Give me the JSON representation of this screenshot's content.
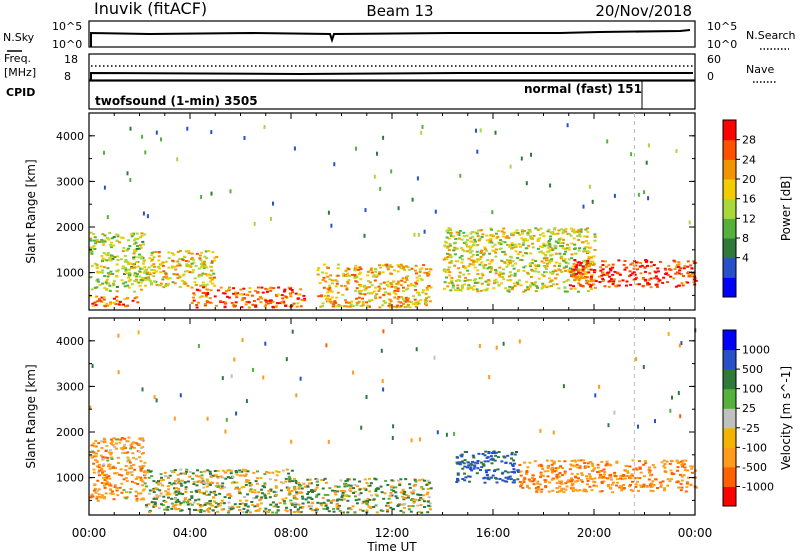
{
  "header": {
    "title": "Inuvik (fitACF)",
    "beam": "Beam 13",
    "date": "20/Nov/2018"
  },
  "sky_panel": {
    "left_label": "N.Sky",
    "right_label": "N.Search",
    "ticks": [
      "10^5",
      "10^0"
    ]
  },
  "freq_panel": {
    "left_label_1": "Freq.",
    "left_label_2": "[MHz]",
    "left_ticks": [
      "18",
      "8"
    ],
    "right_label": "Nave",
    "right_ticks": [
      "60",
      "0"
    ]
  },
  "cpid_panel": {
    "label": "CPID",
    "modes": [
      {
        "name": "twofsound (1-min) 3505",
        "start_hour": 0
      },
      {
        "name": "normal (fast) 151",
        "start_hour": 21.6
      }
    ]
  },
  "time_axis": {
    "label": "Time UT",
    "ticks": [
      "00:00",
      "04:00",
      "08:00",
      "12:00",
      "16:00",
      "20:00",
      "00:00"
    ]
  },
  "chart_data": [
    {
      "type": "heatmap",
      "name": "power",
      "xlabel": "Time UT",
      "ylabel": "Slant Range [km]",
      "xlim_hours": [
        0,
        24
      ],
      "ylim_km": [
        180,
        4500
      ],
      "yticks": [
        "1000",
        "2000",
        "3000",
        "4000"
      ],
      "colorbar": {
        "label": "Power [dB]",
        "ticks": [
          "28",
          "24",
          "20",
          "16",
          "12",
          "8",
          "4"
        ],
        "colors": [
          "#0000ff",
          "#2850c8",
          "#2f7a3a",
          "#54b23c",
          "#a8d83a",
          "#f2cc00",
          "#f29400",
          "#ff5000",
          "#ff0000"
        ]
      },
      "regions": [
        {
          "t0": 0,
          "t1": 2.2,
          "r0": 600,
          "r1": 1900,
          "value": 14
        },
        {
          "t0": 0,
          "t1": 2.0,
          "r0": 260,
          "r1": 500,
          "value": 26
        },
        {
          "t0": 2.2,
          "t1": 5,
          "r0": 700,
          "r1": 1500,
          "value": 18
        },
        {
          "t0": 4,
          "t1": 8.5,
          "r0": 250,
          "r1": 700,
          "value": 26
        },
        {
          "t0": 9,
          "t1": 13.5,
          "r0": 250,
          "r1": 1200,
          "value": 20
        },
        {
          "t0": 14,
          "t1": 20,
          "r0": 600,
          "r1": 2000,
          "value": 16
        },
        {
          "t0": 19,
          "t1": 24,
          "r0": 700,
          "r1": 1300,
          "value": 28
        }
      ]
    },
    {
      "type": "heatmap",
      "name": "velocity",
      "xlabel": "Time UT",
      "ylabel": "Slant Range [km]",
      "xlim_hours": [
        0,
        24
      ],
      "ylim_km": [
        180,
        4500
      ],
      "yticks": [
        "1000",
        "2000",
        "3000",
        "4000"
      ],
      "colorbar": {
        "label": "Velocity [m s^-1]",
        "ticks": [
          "1000",
          "500",
          "100",
          "25",
          "-25",
          "-100",
          "-500",
          "-1000"
        ],
        "colors": [
          "#ff0000",
          "#ff6000",
          "#ff9a1a",
          "#f2b400",
          "#c0c0c0",
          "#54b23c",
          "#2f7a3a",
          "#2850c8",
          "#0000ff"
        ]
      },
      "regions": [
        {
          "t0": 0,
          "t1": 2.2,
          "r0": 500,
          "r1": 1900,
          "value": -300
        },
        {
          "t0": 2.2,
          "t1": 8,
          "r0": 250,
          "r1": 1200,
          "value": 0
        },
        {
          "t0": 8,
          "t1": 13.5,
          "r0": 250,
          "r1": 1000,
          "value": 60
        },
        {
          "t0": 14.5,
          "t1": 17,
          "r0": 900,
          "r1": 1600,
          "value": 600
        },
        {
          "t0": 17,
          "t1": 24,
          "r0": 700,
          "r1": 1400,
          "value": -400
        }
      ]
    }
  ]
}
